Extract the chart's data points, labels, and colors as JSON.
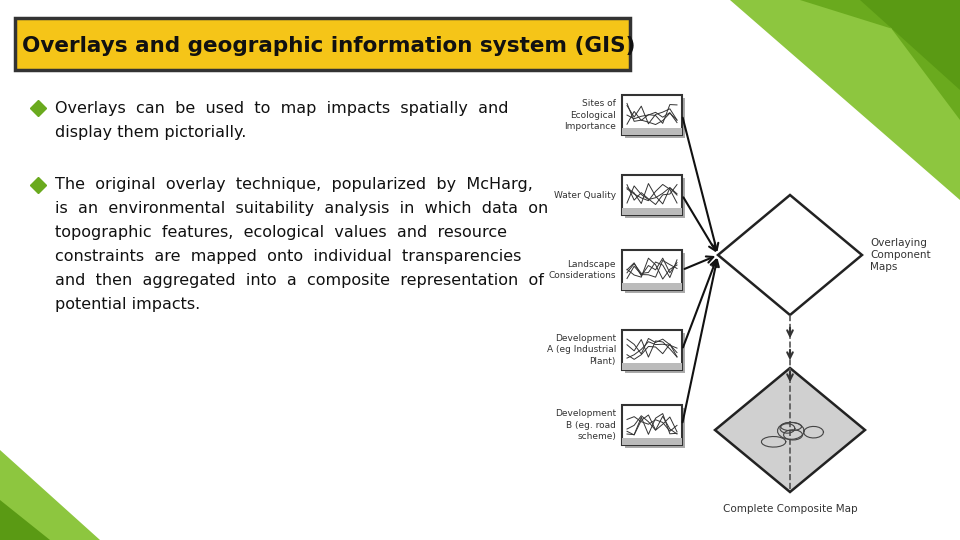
{
  "title": "Overlays and geographic information system (GIS)",
  "title_bg": "#F5C518",
  "title_border": "#333333",
  "bg_color": "#FFFFFF",
  "bullet1_line1": "Overlays  can  be  used  to  map  impacts  spatially  and",
  "bullet1_line2": "display them pictorially.",
  "bullet2_line1": "The  original  overlay  technique,  popularized  by  McHarg,",
  "bullet2_line2": "is  an  environmental  suitability  analysis  in  which  data  on",
  "bullet2_line3": "topographic  features,  ecological  values  and  resource",
  "bullet2_line4": "constraints  are  mapped  onto  individual  transparencies",
  "bullet2_line5": "and  then  aggregated  into  a  composite  representation  of",
  "bullet2_line6": "potential impacts.",
  "diagram_labels": [
    "Sites of\nEcological\nImportance",
    "Water Quality",
    "Landscape\nConsiderations",
    "Development\nA (eg Industrial\nPlant)",
    "Development\nB (eg. road\nscheme)"
  ],
  "overlay_label": "Overlaying\nComponent\nMaps",
  "composite_label": "Complete Composite Map",
  "bullet_color": "#6aaa1e",
  "text_color": "#111111"
}
